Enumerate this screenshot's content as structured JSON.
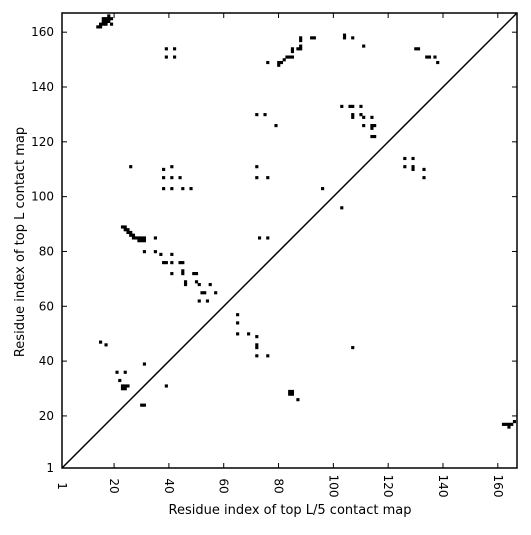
{
  "chart_data": {
    "type": "scatter",
    "xlabel": "Residue index of top L/5 contact map",
    "ylabel": "Residue index of top L contact map",
    "xlim": [
      1,
      167
    ],
    "ylim": [
      1,
      167
    ],
    "x_ticks": [
      1,
      20,
      40,
      60,
      80,
      100,
      120,
      140,
      160
    ],
    "y_ticks": [
      1,
      20,
      40,
      60,
      80,
      100,
      120,
      140,
      160
    ],
    "grid": false,
    "diagonal_line": true,
    "marker_color": "#000000",
    "series": [
      {
        "points": [
          [
            14,
            162
          ],
          [
            15,
            162
          ],
          [
            15,
            163
          ],
          [
            16,
            163
          ],
          [
            16,
            164
          ],
          [
            16,
            165
          ],
          [
            17,
            164
          ],
          [
            17,
            165
          ],
          [
            17,
            163
          ],
          [
            18,
            164
          ],
          [
            18,
            165
          ],
          [
            18,
            166
          ],
          [
            19,
            163
          ],
          [
            19,
            165
          ],
          [
            15,
            47
          ],
          [
            17,
            46
          ],
          [
            21,
            36
          ],
          [
            22,
            33
          ],
          [
            24,
            36
          ],
          [
            23,
            31
          ],
          [
            24,
            31
          ],
          [
            23,
            30
          ],
          [
            24,
            30
          ],
          [
            25,
            31
          ],
          [
            30,
            24
          ],
          [
            31,
            24
          ],
          [
            31,
            39
          ],
          [
            26,
            111
          ],
          [
            23,
            89
          ],
          [
            24,
            89
          ],
          [
            24,
            88
          ],
          [
            25,
            88
          ],
          [
            25,
            87
          ],
          [
            26,
            87
          ],
          [
            26,
            86
          ],
          [
            27,
            86
          ],
          [
            27,
            85
          ],
          [
            28,
            85
          ],
          [
            29,
            85
          ],
          [
            29,
            84
          ],
          [
            30,
            84
          ],
          [
            31,
            84
          ],
          [
            30,
            85
          ],
          [
            31,
            85
          ],
          [
            31,
            80
          ],
          [
            35,
            85
          ],
          [
            35,
            80
          ],
          [
            37,
            79
          ],
          [
            38,
            76
          ],
          [
            39,
            76
          ],
          [
            41,
            79
          ],
          [
            41,
            76
          ],
          [
            41,
            72
          ],
          [
            44,
            76
          ],
          [
            45,
            76
          ],
          [
            45,
            73
          ],
          [
            45,
            72
          ],
          [
            46,
            69
          ],
          [
            46,
            68
          ],
          [
            49,
            72
          ],
          [
            50,
            72
          ],
          [
            50,
            69
          ],
          [
            51,
            68
          ],
          [
            52,
            65
          ],
          [
            51,
            62
          ],
          [
            53,
            65
          ],
          [
            54,
            62
          ],
          [
            55,
            68
          ],
          [
            57,
            65
          ],
          [
            39,
            31
          ],
          [
            38,
            110
          ],
          [
            38,
            107
          ],
          [
            38,
            103
          ],
          [
            41,
            111
          ],
          [
            41,
            107
          ],
          [
            41,
            103
          ],
          [
            44,
            107
          ],
          [
            45,
            103
          ],
          [
            48,
            103
          ],
          [
            39,
            154
          ],
          [
            39,
            151
          ],
          [
            42,
            154
          ],
          [
            42,
            151
          ],
          [
            65,
            57
          ],
          [
            65,
            54
          ],
          [
            65,
            50
          ],
          [
            69,
            50
          ],
          [
            72,
            49
          ],
          [
            72,
            46
          ],
          [
            72,
            45
          ],
          [
            72,
            42
          ],
          [
            76,
            42
          ],
          [
            73,
            85
          ],
          [
            76,
            85
          ],
          [
            72,
            111
          ],
          [
            72,
            107
          ],
          [
            76,
            107
          ],
          [
            72,
            130
          ],
          [
            75,
            130
          ],
          [
            79,
            126
          ],
          [
            76,
            149
          ],
          [
            80,
            149
          ],
          [
            80,
            148
          ],
          [
            81,
            149
          ],
          [
            82,
            150
          ],
          [
            83,
            151
          ],
          [
            84,
            151
          ],
          [
            85,
            151
          ],
          [
            85,
            153
          ],
          [
            85,
            154
          ],
          [
            87,
            154
          ],
          [
            88,
            154
          ],
          [
            88,
            155
          ],
          [
            88,
            157
          ],
          [
            88,
            158
          ],
          [
            92,
            158
          ],
          [
            93,
            158
          ],
          [
            84,
            29
          ],
          [
            85,
            29
          ],
          [
            84,
            28
          ],
          [
            85,
            28
          ],
          [
            87,
            26
          ],
          [
            96,
            103
          ],
          [
            103,
            96
          ],
          [
            103,
            133
          ],
          [
            104,
            159
          ],
          [
            104,
            158
          ],
          [
            106,
            133
          ],
          [
            107,
            133
          ],
          [
            107,
            130
          ],
          [
            107,
            129
          ],
          [
            107,
            158
          ],
          [
            110,
            133
          ],
          [
            110,
            130
          ],
          [
            111,
            129
          ],
          [
            111,
            126
          ],
          [
            111,
            155
          ],
          [
            114,
            129
          ],
          [
            114,
            126
          ],
          [
            114,
            125
          ],
          [
            114,
            122
          ],
          [
            115,
            122
          ],
          [
            115,
            126
          ],
          [
            107,
            45
          ],
          [
            126,
            114
          ],
          [
            126,
            111
          ],
          [
            129,
            114
          ],
          [
            129,
            111
          ],
          [
            129,
            110
          ],
          [
            130,
            154
          ],
          [
            131,
            154
          ],
          [
            133,
            110
          ],
          [
            133,
            107
          ],
          [
            134,
            151
          ],
          [
            135,
            151
          ],
          [
            137,
            151
          ],
          [
            138,
            149
          ],
          [
            162,
            17
          ],
          [
            163,
            17
          ],
          [
            164,
            17
          ],
          [
            164,
            16
          ],
          [
            165,
            17
          ],
          [
            166,
            18
          ]
        ]
      }
    ]
  }
}
